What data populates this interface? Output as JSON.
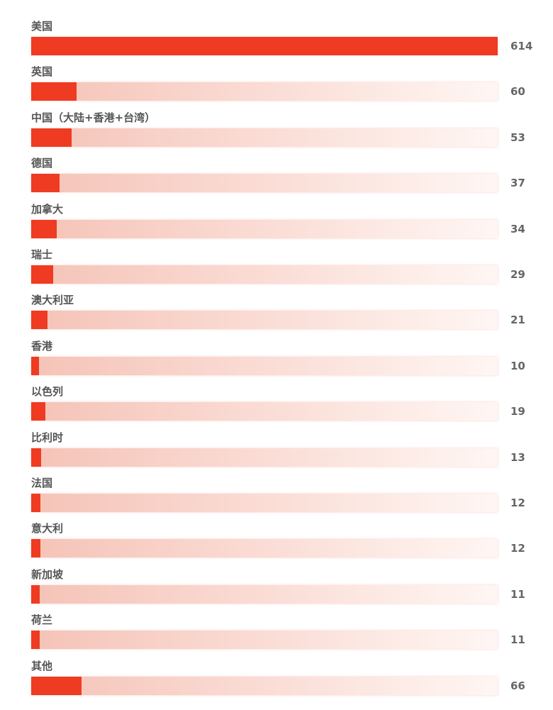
{
  "chart_data": {
    "type": "bar",
    "orientation": "horizontal",
    "title": "",
    "xlabel": "",
    "ylabel": "",
    "categories": [
      "美国",
      "英国",
      "中国（大陆+香港+台湾）",
      "德国",
      "加拿大",
      "瑞士",
      "澳大利亚",
      "香港",
      "以色列",
      "比利时",
      "法国",
      "意大利",
      "新加坡",
      "荷兰",
      "其他"
    ],
    "values": [
      614,
      60,
      53,
      37,
      34,
      29,
      21,
      10,
      19,
      13,
      12,
      12,
      11,
      11,
      66
    ],
    "xlim": [
      0,
      614
    ],
    "grid": false,
    "legend": "none",
    "colors": {
      "bar": "#ee3b22",
      "track_start": "#f5c3b7",
      "track_end": "#fff6f3",
      "label": "#555555",
      "value": "#666666"
    }
  }
}
